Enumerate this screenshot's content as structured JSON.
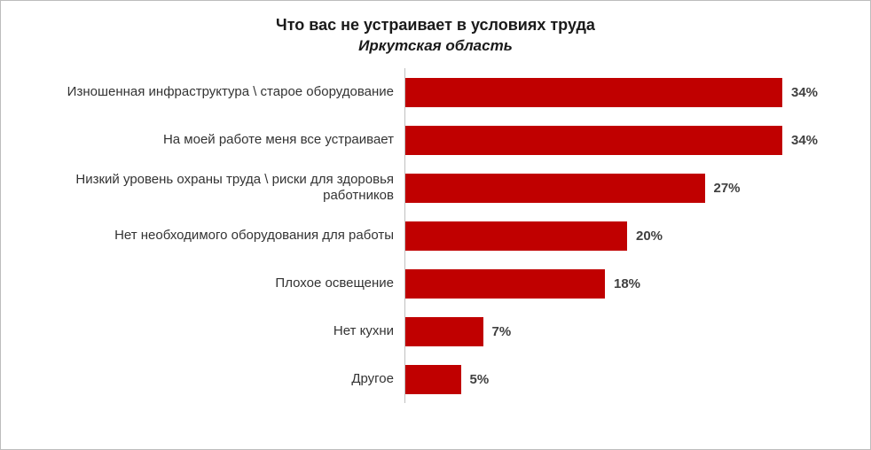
{
  "chart_data": {
    "type": "bar",
    "orientation": "horizontal",
    "title": "Что вас не устраивает в условиях труда",
    "subtitle": "Иркутская область",
    "categories": [
      "Изношенная инфраструктура \\ старое оборудование",
      "На моей работе меня все устраивает",
      "Низкий уровень охраны труда \\ риски для здоровья работников",
      "Нет необходимого оборудования для работы",
      "Плохое освещение",
      "Нет кухни",
      "Другое"
    ],
    "values": [
      34,
      34,
      27,
      20,
      18,
      7,
      5
    ],
    "value_labels": [
      "34%",
      "34%",
      "27%",
      "20%",
      "18%",
      "7%",
      "5%"
    ],
    "xlim": [
      0,
      36
    ],
    "bar_color": "#C00000",
    "grid": false,
    "legend": false,
    "axis_line_color": "#bfbfbf"
  }
}
